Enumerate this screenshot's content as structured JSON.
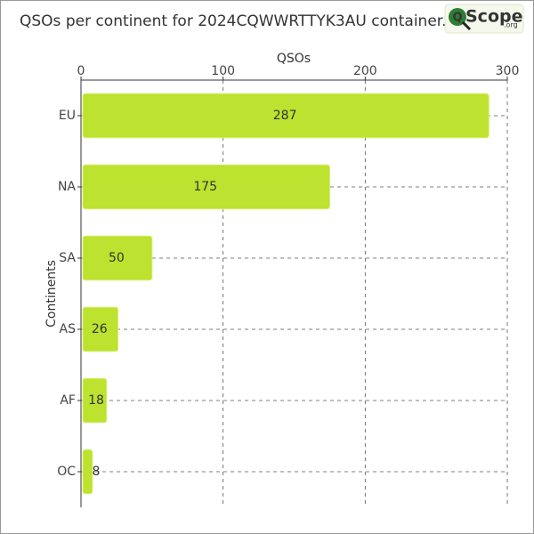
{
  "chart_data": {
    "type": "bar",
    "orientation": "horizontal",
    "title": "QSOs per continent for 2024CQWWRTTYK3AU container.",
    "logo": {
      "letter": "Q",
      "name": "Scope",
      "suffix": ".org"
    },
    "x_label": "QSOs",
    "y_label": "Continents",
    "categories": [
      "EU",
      "NA",
      "SA",
      "AS",
      "AF",
      "OC"
    ],
    "values": [
      287,
      175,
      50,
      26,
      18,
      8
    ],
    "color": "#bde22f",
    "xlim": [
      0,
      300
    ],
    "xticks": [
      0,
      100,
      200,
      300
    ],
    "grid": true
  }
}
